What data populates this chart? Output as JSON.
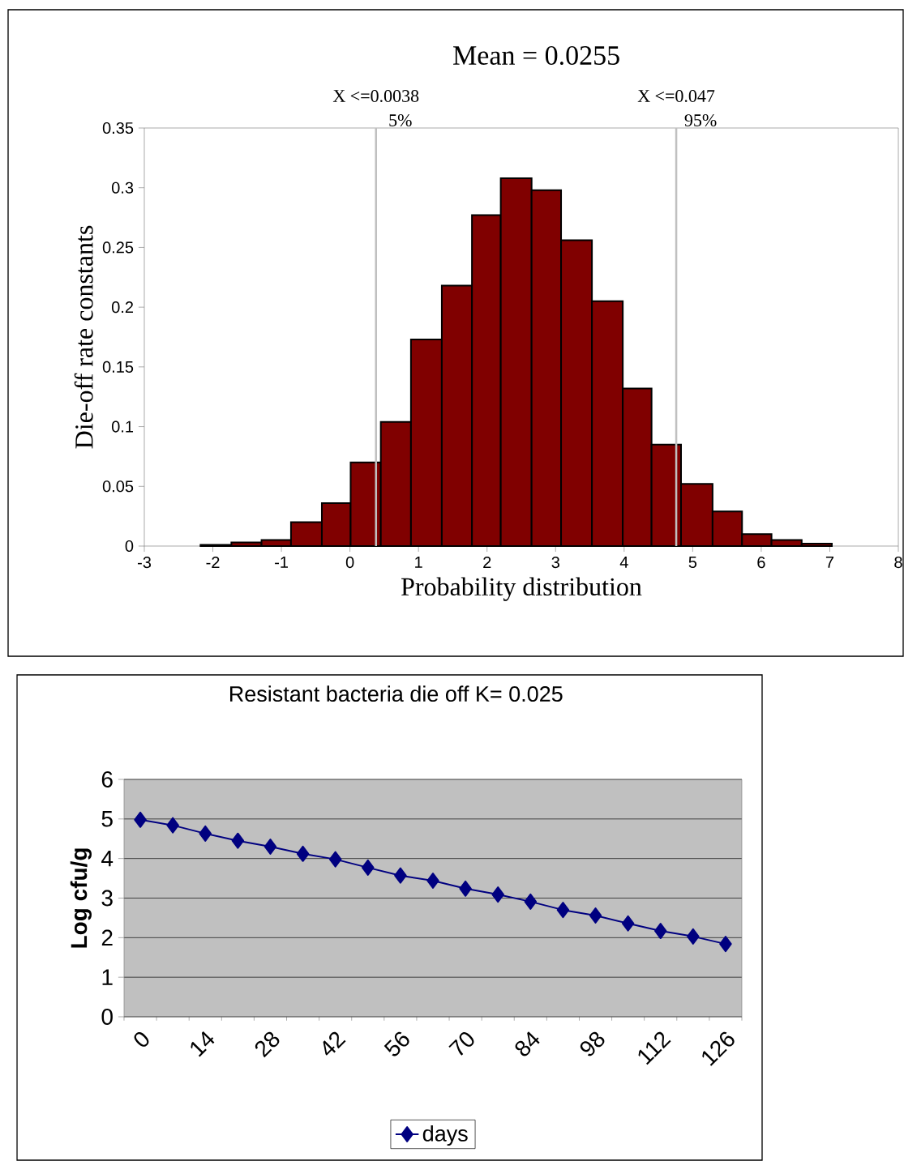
{
  "chart_data": [
    {
      "type": "histogram",
      "title": "Mean = 0.0255",
      "xlabel": "Probability distribution",
      "ylabel": "Die-off rate constants",
      "bins": [
        -2.18,
        -1.73,
        -1.29,
        -0.86,
        -0.41,
        0.01,
        0.45,
        0.89,
        1.34,
        1.78,
        2.2,
        2.65,
        3.08,
        3.53,
        3.98,
        4.4,
        4.83,
        5.29,
        5.72,
        6.15,
        6.59,
        7.03
      ],
      "values": [
        0.001,
        0.003,
        0.005,
        0.02,
        0.036,
        0.07,
        0.104,
        0.173,
        0.218,
        0.277,
        0.308,
        0.298,
        0.256,
        0.205,
        0.132,
        0.085,
        0.052,
        0.029,
        0.01,
        0.005,
        0.002
      ],
      "color": "#800000",
      "xlim": [
        -3,
        8
      ],
      "xticks": [
        -3,
        -2,
        -1,
        0,
        1,
        2,
        3,
        4,
        5,
        6,
        7,
        8
      ],
      "ylim": [
        0,
        0.35
      ],
      "yticks": [
        0,
        0.05,
        0.1,
        0.15,
        0.2,
        0.25,
        0.3,
        0.35
      ],
      "ref_lines": [
        {
          "axis": "x",
          "value": 0.38,
          "color": "#c0c0c0"
        },
        {
          "axis": "x",
          "value": 4.76,
          "color": "#c0c0c0"
        }
      ],
      "annotations": [
        "X <=0.0038",
        "5%",
        "X <=0.047",
        "95%"
      ],
      "grid": false
    },
    {
      "type": "line",
      "title": "Resistant bacteria die off K= 0.025",
      "ylabel": "Log cfu/g",
      "categories": [
        "0",
        null,
        "14",
        null,
        "28",
        null,
        "42",
        null,
        "56",
        null,
        "70",
        null,
        "84",
        null,
        "98",
        null,
        "112",
        null,
        "126"
      ],
      "series": [
        {
          "name": "days",
          "color": "#000080",
          "values": [
            4.98,
            4.84,
            4.63,
            4.45,
            4.3,
            4.12,
            3.98,
            3.77,
            3.57,
            3.44,
            3.24,
            3.09,
            2.91,
            2.7,
            2.56,
            2.36,
            2.17,
            2.03,
            1.84
          ]
        }
      ],
      "ylim": [
        0,
        6
      ],
      "yticks": [
        0,
        1,
        2,
        3,
        4,
        5,
        6
      ],
      "grid": "y",
      "legend": "bottom",
      "marker": "diamond"
    }
  ]
}
